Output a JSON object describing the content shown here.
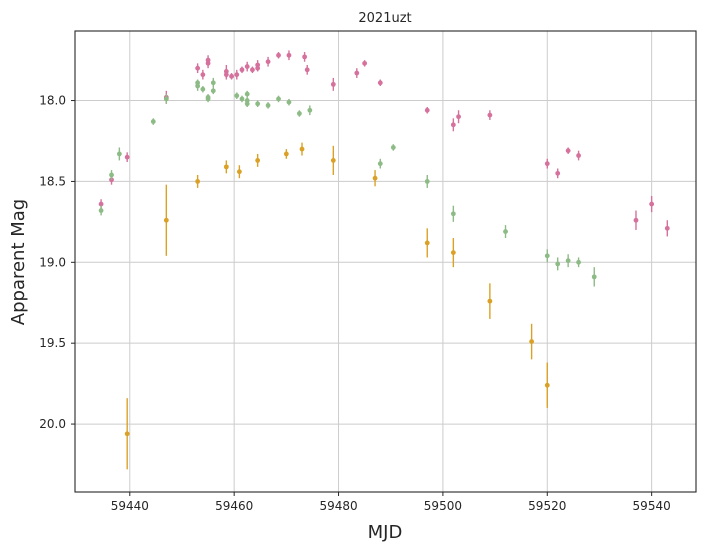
{
  "chart_data": {
    "type": "scatter",
    "title": "2021uzt",
    "xlabel": "MJD",
    "ylabel": "Apparent Mag",
    "xlim": [
      59429.5,
      59548.5
    ],
    "ylim": [
      20.42,
      17.57
    ],
    "y_inverted": true,
    "grid": true,
    "x_ticks": [
      59440,
      59460,
      59480,
      59500,
      59520,
      59540
    ],
    "y_ticks": [
      18.0,
      18.5,
      19.0,
      19.5,
      20.0
    ],
    "x_tick_labels": [
      "59440",
      "59460",
      "59480",
      "59500",
      "59520",
      "59540"
    ],
    "y_tick_labels": [
      "18.0",
      "18.5",
      "19.0",
      "19.5",
      "20.0"
    ],
    "series": [
      {
        "color": "#d5719c",
        "points": [
          {
            "x": 59434.5,
            "y": 18.64,
            "err": 0.03
          },
          {
            "x": 59436.5,
            "y": 18.49,
            "err": 0.03
          },
          {
            "x": 59439.5,
            "y": 18.35,
            "err": 0.03
          },
          {
            "x": 59447.0,
            "y": 17.98,
            "err": 0.04
          },
          {
            "x": 59453.0,
            "y": 17.8,
            "err": 0.03
          },
          {
            "x": 59454.0,
            "y": 17.84,
            "err": 0.03
          },
          {
            "x": 59455.0,
            "y": 17.77,
            "err": 0.03
          },
          {
            "x": 59455.0,
            "y": 17.75,
            "err": 0.03
          },
          {
            "x": 59458.5,
            "y": 17.82,
            "err": 0.04
          },
          {
            "x": 59458.5,
            "y": 17.84,
            "err": 0.03
          },
          {
            "x": 59459.5,
            "y": 17.85,
            "err": 0.02
          },
          {
            "x": 59460.5,
            "y": 17.84,
            "err": 0.03
          },
          {
            "x": 59461.5,
            "y": 17.81,
            "err": 0.02
          },
          {
            "x": 59462.5,
            "y": 17.79,
            "err": 0.03
          },
          {
            "x": 59463.5,
            "y": 17.81,
            "err": 0.02
          },
          {
            "x": 59464.5,
            "y": 17.78,
            "err": 0.03
          },
          {
            "x": 59464.5,
            "y": 17.8,
            "err": 0.02
          },
          {
            "x": 59466.5,
            "y": 17.76,
            "err": 0.03
          },
          {
            "x": 59468.5,
            "y": 17.72,
            "err": 0.02
          },
          {
            "x": 59470.5,
            "y": 17.72,
            "err": 0.03
          },
          {
            "x": 59473.5,
            "y": 17.73,
            "err": 0.03
          },
          {
            "x": 59474.0,
            "y": 17.81,
            "err": 0.03
          },
          {
            "x": 59479.0,
            "y": 17.9,
            "err": 0.04
          },
          {
            "x": 59483.5,
            "y": 17.83,
            "err": 0.03
          },
          {
            "x": 59485.0,
            "y": 17.77,
            "err": 0.02
          },
          {
            "x": 59488.0,
            "y": 17.89,
            "err": 0.02
          },
          {
            "x": 59497.0,
            "y": 18.06,
            "err": 0.02
          },
          {
            "x": 59502.0,
            "y": 18.15,
            "err": 0.04
          },
          {
            "x": 59503.0,
            "y": 18.1,
            "err": 0.04
          },
          {
            "x": 59509.0,
            "y": 18.09,
            "err": 0.03
          },
          {
            "x": 59520.0,
            "y": 18.39,
            "err": 0.03
          },
          {
            "x": 59522.0,
            "y": 18.45,
            "err": 0.03
          },
          {
            "x": 59524.0,
            "y": 18.31,
            "err": 0.02
          },
          {
            "x": 59526.0,
            "y": 18.34,
            "err": 0.03
          },
          {
            "x": 59537.0,
            "y": 18.74,
            "err": 0.06
          },
          {
            "x": 59540.0,
            "y": 18.64,
            "err": 0.05
          },
          {
            "x": 59543.0,
            "y": 18.79,
            "err": 0.05
          }
        ]
      },
      {
        "color": "#8dbb86",
        "points": [
          {
            "x": 59434.5,
            "y": 18.68,
            "err": 0.03
          },
          {
            "x": 59436.5,
            "y": 18.46,
            "err": 0.03
          },
          {
            "x": 59438.0,
            "y": 18.33,
            "err": 0.04
          },
          {
            "x": 59444.5,
            "y": 18.13,
            "err": 0.02
          },
          {
            "x": 59447.0,
            "y": 17.99,
            "err": 0.03
          },
          {
            "x": 59453.0,
            "y": 17.91,
            "err": 0.03
          },
          {
            "x": 59453.0,
            "y": 17.89,
            "err": 0.02
          },
          {
            "x": 59454.0,
            "y": 17.93,
            "err": 0.02
          },
          {
            "x": 59455.0,
            "y": 17.98,
            "err": 0.02
          },
          {
            "x": 59455.0,
            "y": 17.99,
            "err": 0.02
          },
          {
            "x": 59456.0,
            "y": 17.89,
            "err": 0.03
          },
          {
            "x": 59456.0,
            "y": 17.94,
            "err": 0.02
          },
          {
            "x": 59460.5,
            "y": 17.97,
            "err": 0.02
          },
          {
            "x": 59461.5,
            "y": 17.99,
            "err": 0.02
          },
          {
            "x": 59462.5,
            "y": 18.0,
            "err": 0.02
          },
          {
            "x": 59462.5,
            "y": 17.96,
            "err": 0.02
          },
          {
            "x": 59462.5,
            "y": 18.02,
            "err": 0.02
          },
          {
            "x": 59464.5,
            "y": 18.02,
            "err": 0.02
          },
          {
            "x": 59466.5,
            "y": 18.03,
            "err": 0.02
          },
          {
            "x": 59468.5,
            "y": 17.99,
            "err": 0.02
          },
          {
            "x": 59470.5,
            "y": 18.01,
            "err": 0.02
          },
          {
            "x": 59472.5,
            "y": 18.08,
            "err": 0.02
          },
          {
            "x": 59474.5,
            "y": 18.06,
            "err": 0.03
          },
          {
            "x": 59488.0,
            "y": 18.39,
            "err": 0.03
          },
          {
            "x": 59490.5,
            "y": 18.29,
            "err": 0.02
          },
          {
            "x": 59497.0,
            "y": 18.5,
            "err": 0.04
          },
          {
            "x": 59502.0,
            "y": 18.7,
            "err": 0.05
          },
          {
            "x": 59512.0,
            "y": 18.81,
            "err": 0.04
          },
          {
            "x": 59520.0,
            "y": 18.96,
            "err": 0.04
          },
          {
            "x": 59522.0,
            "y": 19.01,
            "err": 0.04
          },
          {
            "x": 59524.0,
            "y": 18.99,
            "err": 0.04
          },
          {
            "x": 59526.0,
            "y": 19.0,
            "err": 0.03
          },
          {
            "x": 59529.0,
            "y": 19.09,
            "err": 0.06
          }
        ]
      },
      {
        "color": "#dba126",
        "points": [
          {
            "x": 59439.5,
            "y": 20.06,
            "err": 0.22
          },
          {
            "x": 59447.0,
            "y": 18.74,
            "err": 0.22
          },
          {
            "x": 59453.0,
            "y": 18.5,
            "err": 0.04
          },
          {
            "x": 59458.5,
            "y": 18.41,
            "err": 0.04
          },
          {
            "x": 59461.0,
            "y": 18.44,
            "err": 0.04
          },
          {
            "x": 59464.5,
            "y": 18.37,
            "err": 0.04
          },
          {
            "x": 59470.0,
            "y": 18.33,
            "err": 0.03
          },
          {
            "x": 59473.0,
            "y": 18.3,
            "err": 0.04
          },
          {
            "x": 59479.0,
            "y": 18.37,
            "err": 0.09
          },
          {
            "x": 59487.0,
            "y": 18.48,
            "err": 0.05
          },
          {
            "x": 59497.0,
            "y": 18.88,
            "err": 0.09
          },
          {
            "x": 59502.0,
            "y": 18.94,
            "err": 0.09
          },
          {
            "x": 59509.0,
            "y": 19.24,
            "err": 0.11
          },
          {
            "x": 59517.0,
            "y": 19.49,
            "err": 0.11
          },
          {
            "x": 59520.0,
            "y": 19.76,
            "err": 0.14
          }
        ]
      }
    ]
  }
}
